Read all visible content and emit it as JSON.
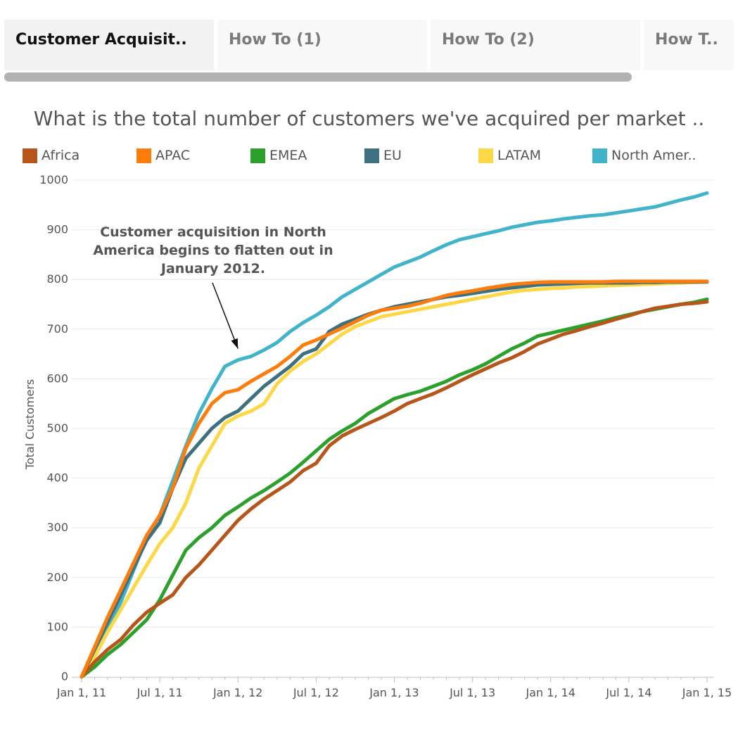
{
  "tabs": [
    {
      "label": "Customer Acquisit..",
      "active": true
    },
    {
      "label": "How To (1)",
      "active": false
    },
    {
      "label": "How To (2)",
      "active": false
    },
    {
      "label": "How T..",
      "active": false
    }
  ],
  "chart_data": {
    "type": "line",
    "title": "What is the total number of customers we've acquired per market ..",
    "ylabel": "Total Customers",
    "xlabel": "",
    "ylim": [
      0,
      1000
    ],
    "yticks": [
      0,
      100,
      200,
      300,
      400,
      500,
      600,
      700,
      800,
      900,
      1000
    ],
    "xlim": [
      0,
      48
    ],
    "x_unit": "months since Jan 1, 11",
    "xticks": [
      {
        "x": 0,
        "label": "Jan 1, 11"
      },
      {
        "x": 6,
        "label": "Jul 1, 11"
      },
      {
        "x": 12,
        "label": "Jan 1, 12"
      },
      {
        "x": 18,
        "label": "Jul 1, 12"
      },
      {
        "x": 24,
        "label": "Jan 1, 13"
      },
      {
        "x": 30,
        "label": "Jul 1, 13"
      },
      {
        "x": 36,
        "label": "Jan 1, 14"
      },
      {
        "x": 42,
        "label": "Jul 1, 14"
      },
      {
        "x": 48,
        "label": "Jan 1, 15"
      }
    ],
    "grid": true,
    "legend_position": "top",
    "series": [
      {
        "name": "Africa",
        "color": "#b6561a",
        "x": [
          0,
          1,
          2,
          3,
          4,
          5,
          6,
          7,
          8,
          9,
          10,
          11,
          12,
          13,
          14,
          15,
          16,
          17,
          18,
          19,
          20,
          21,
          22,
          23,
          24,
          25,
          26,
          27,
          28,
          29,
          30,
          31,
          32,
          33,
          34,
          35,
          36,
          37,
          38,
          39,
          40,
          41,
          42,
          43,
          44,
          45,
          46,
          47,
          48
        ],
        "y": [
          0,
          30,
          55,
          75,
          105,
          130,
          148,
          165,
          200,
          225,
          255,
          285,
          315,
          338,
          358,
          375,
          392,
          415,
          430,
          465,
          485,
          498,
          510,
          522,
          535,
          550,
          560,
          570,
          582,
          595,
          608,
          620,
          632,
          642,
          655,
          670,
          680,
          690,
          697,
          705,
          712,
          720,
          727,
          735,
          742,
          746,
          750,
          752,
          755
        ]
      },
      {
        "name": "APAC",
        "color": "#fc7d0b",
        "x": [
          0,
          1,
          2,
          3,
          4,
          5,
          6,
          7,
          8,
          9,
          10,
          11,
          12,
          13,
          14,
          15,
          16,
          17,
          18,
          19,
          20,
          21,
          22,
          23,
          24,
          25,
          26,
          27,
          28,
          29,
          30,
          31,
          32,
          33,
          34,
          35,
          36,
          37,
          38,
          39,
          40,
          41,
          42,
          43,
          44,
          45,
          46,
          47,
          48
        ],
        "y": [
          0,
          60,
          120,
          175,
          230,
          285,
          325,
          380,
          460,
          510,
          550,
          572,
          578,
          595,
          610,
          625,
          645,
          668,
          678,
          690,
          702,
          715,
          728,
          738,
          742,
          746,
          752,
          760,
          768,
          773,
          777,
          782,
          786,
          790,
          792,
          794,
          795,
          795,
          795,
          795,
          795,
          796,
          796,
          796,
          796,
          796,
          796,
          796,
          796
        ]
      },
      {
        "name": "EMEA",
        "color": "#2ca02c",
        "x": [
          0,
          1,
          2,
          3,
          4,
          5,
          6,
          7,
          8,
          9,
          10,
          11,
          12,
          13,
          14,
          15,
          16,
          17,
          18,
          19,
          20,
          21,
          22,
          23,
          24,
          25,
          26,
          27,
          28,
          29,
          30,
          31,
          32,
          33,
          34,
          35,
          36,
          37,
          38,
          39,
          40,
          41,
          42,
          43,
          44,
          45,
          46,
          47,
          48
        ],
        "y": [
          0,
          20,
          45,
          65,
          90,
          115,
          155,
          205,
          255,
          280,
          300,
          325,
          342,
          360,
          375,
          392,
          410,
          432,
          455,
          478,
          495,
          510,
          530,
          545,
          560,
          568,
          575,
          585,
          595,
          608,
          618,
          630,
          645,
          660,
          672,
          686,
          692,
          698,
          704,
          710,
          716,
          723,
          729,
          735,
          740,
          745,
          750,
          754,
          760
        ]
      },
      {
        "name": "EU",
        "color": "#3d7180",
        "x": [
          0,
          1,
          2,
          3,
          4,
          5,
          6,
          7,
          8,
          9,
          10,
          11,
          12,
          13,
          14,
          15,
          16,
          17,
          18,
          19,
          20,
          21,
          22,
          23,
          24,
          25,
          26,
          27,
          28,
          29,
          30,
          31,
          32,
          33,
          34,
          35,
          36,
          37,
          38,
          39,
          40,
          41,
          42,
          43,
          44,
          45,
          46,
          47,
          48
        ],
        "y": [
          0,
          55,
          110,
          165,
          220,
          275,
          310,
          380,
          440,
          470,
          500,
          522,
          535,
          560,
          585,
          605,
          625,
          650,
          660,
          695,
          710,
          720,
          730,
          738,
          745,
          750,
          755,
          760,
          765,
          768,
          772,
          776,
          780,
          783,
          786,
          789,
          790,
          791,
          792,
          793,
          793,
          793,
          793,
          794,
          794,
          795,
          795,
          795,
          795
        ]
      },
      {
        "name": "LATAM",
        "color": "#fdd846",
        "x": [
          0,
          1,
          2,
          3,
          4,
          5,
          6,
          7,
          8,
          9,
          10,
          11,
          12,
          13,
          14,
          15,
          16,
          17,
          18,
          19,
          20,
          21,
          22,
          23,
          24,
          25,
          26,
          27,
          28,
          29,
          30,
          31,
          32,
          33,
          34,
          35,
          36,
          37,
          38,
          39,
          40,
          41,
          42,
          43,
          44,
          45,
          46,
          47,
          48
        ],
        "y": [
          0,
          40,
          90,
          135,
          180,
          225,
          268,
          300,
          350,
          420,
          465,
          510,
          525,
          535,
          550,
          590,
          615,
          635,
          650,
          670,
          690,
          705,
          715,
          725,
          730,
          735,
          740,
          745,
          750,
          755,
          760,
          765,
          770,
          775,
          778,
          780,
          782,
          783,
          785,
          786,
          787,
          788,
          789,
          790,
          791,
          792,
          793,
          794,
          795
        ]
      },
      {
        "name": "North Amer..",
        "color": "#41b4c9",
        "x": [
          0,
          1,
          2,
          3,
          4,
          5,
          6,
          7,
          8,
          9,
          10,
          11,
          12,
          13,
          14,
          15,
          16,
          17,
          18,
          19,
          20,
          21,
          22,
          23,
          24,
          25,
          26,
          27,
          28,
          29,
          30,
          31,
          32,
          33,
          34,
          35,
          36,
          37,
          38,
          39,
          40,
          41,
          42,
          43,
          44,
          45,
          46,
          47,
          48
        ],
        "y": [
          0,
          45,
          95,
          150,
          215,
          280,
          325,
          395,
          465,
          530,
          580,
          625,
          638,
          645,
          658,
          673,
          695,
          713,
          728,
          745,
          765,
          780,
          795,
          810,
          825,
          835,
          845,
          858,
          870,
          880,
          886,
          892,
          898,
          905,
          910,
          915,
          918,
          922,
          925,
          928,
          930,
          934,
          938,
          942,
          946,
          953,
          960,
          966,
          974
        ]
      }
    ],
    "annotation": {
      "lines": [
        "Customer acquisition in North",
        "America begins to flatten out in",
        "January 2012."
      ],
      "target_x": 12,
      "target_y": 638
    }
  }
}
